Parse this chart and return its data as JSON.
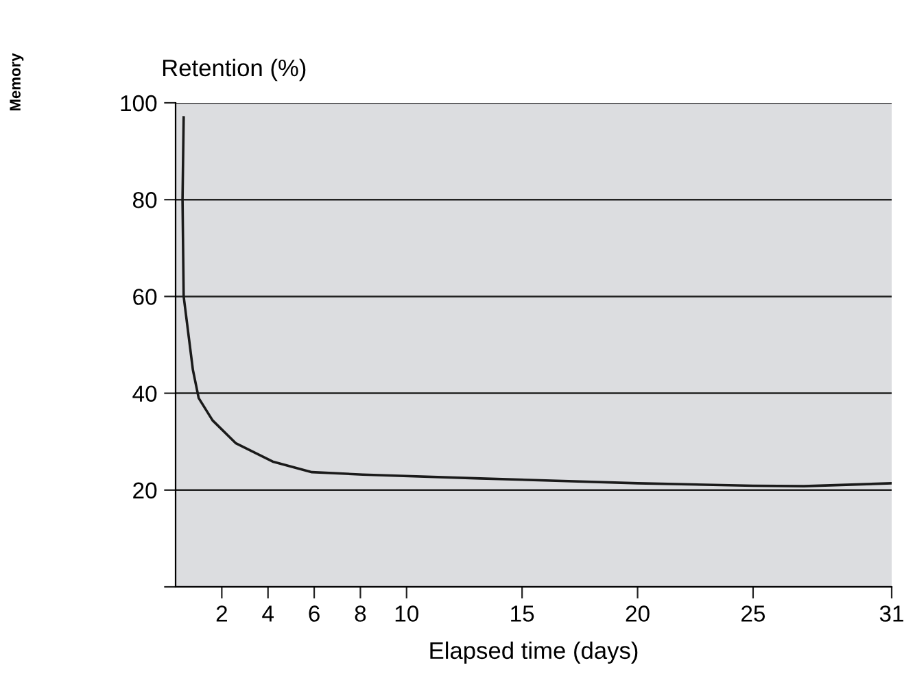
{
  "chart_data": {
    "type": "line",
    "ylabel": "Retention (%)",
    "xlabel": "Elapsed time (days)",
    "annotations": [
      "Memory"
    ],
    "x": [
      0.35,
      0.3,
      0.35,
      0.75,
      1.0,
      1.6,
      2.6,
      4.2,
      5.9,
      8.1,
      13.2,
      20,
      25,
      27.2,
      31
    ],
    "values": [
      97,
      80,
      60,
      44.8,
      39,
      34.4,
      29.7,
      25.9,
      23.7,
      23.2,
      22.4,
      21.4,
      20.9,
      20.8,
      21.4
    ],
    "color": "#1a1a1a",
    "xlim": [
      0,
      31
    ],
    "ylim": [
      0,
      100
    ],
    "xticks": [
      2,
      4,
      6,
      8,
      10,
      15,
      20,
      25,
      31
    ],
    "yticks": [
      {
        "value": 0,
        "label": null
      },
      20,
      40,
      60,
      80,
      100
    ],
    "grid": "y",
    "marker": "none",
    "line_style": "solid"
  }
}
